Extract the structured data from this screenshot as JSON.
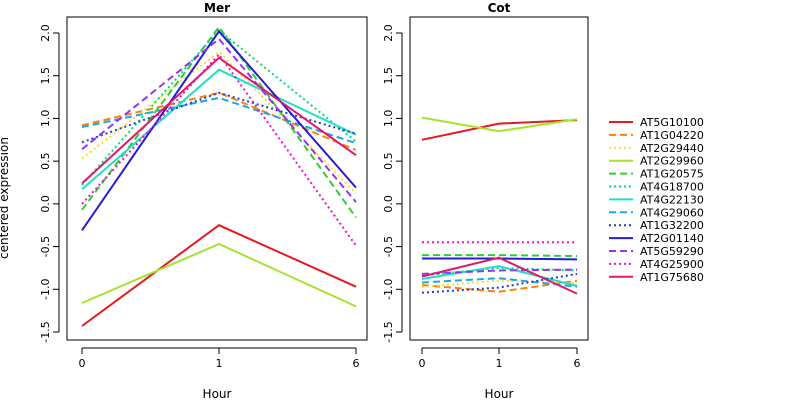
{
  "chart_data": [
    {
      "type": "line",
      "title": "Mer",
      "xlabel": "Hour",
      "ylabel": "centered expression",
      "x": [
        "0",
        "1",
        "6"
      ],
      "ylim": [
        -1.5,
        2.2
      ],
      "yticks": [
        "-1.5",
        "-1.0",
        "-0.5",
        "0.0",
        "0.5",
        "1.0",
        "1.5",
        "2.0"
      ],
      "series": [
        {
          "name": "AT5G10100",
          "values": [
            -1.43,
            -0.25,
            -0.97
          ]
        },
        {
          "name": "AT1G04220",
          "values": [
            0.92,
            1.3,
            0.63
          ]
        },
        {
          "name": "AT2G29440",
          "values": [
            0.53,
            1.78,
            0.12
          ]
        },
        {
          "name": "AT2G29960",
          "values": [
            -1.16,
            -0.47,
            -1.2
          ]
        },
        {
          "name": "AT1G20575",
          "values": [
            -0.07,
            2.07,
            -0.16
          ]
        },
        {
          "name": "AT4G18700",
          "values": [
            0.22,
            2.03,
            0.73
          ]
        },
        {
          "name": "AT4G22130",
          "values": [
            0.17,
            1.57,
            0.81
          ]
        },
        {
          "name": "AT4G29060",
          "values": [
            0.9,
            1.24,
            0.71
          ]
        },
        {
          "name": "AT1G32200",
          "values": [
            0.72,
            1.3,
            0.82
          ]
        },
        {
          "name": "AT2G01140",
          "values": [
            -0.31,
            2.02,
            0.19
          ]
        },
        {
          "name": "AT5G59290",
          "values": [
            0.64,
            1.93,
            0.02
          ]
        },
        {
          "name": "AT4G25900",
          "values": [
            0.0,
            1.75,
            -0.49
          ]
        },
        {
          "name": "AT1G75680",
          "values": [
            0.24,
            1.71,
            0.57
          ]
        }
      ]
    },
    {
      "type": "line",
      "title": "Cot",
      "xlabel": "Hour",
      "ylabel": "",
      "x": [
        "0",
        "1",
        "6"
      ],
      "ylim": [
        -1.5,
        2.2
      ],
      "yticks": [
        "-1.5",
        "-1.0",
        "-0.5",
        "0.0",
        "0.5",
        "1.0",
        "1.5",
        "2.0"
      ],
      "series": [
        {
          "name": "AT5G10100",
          "values": [
            0.75,
            0.94,
            0.98
          ]
        },
        {
          "name": "AT1G04220",
          "values": [
            -0.95,
            -1.03,
            -0.9
          ]
        },
        {
          "name": "AT2G29440",
          "values": [
            -0.97,
            -0.9,
            -0.93
          ]
        },
        {
          "name": "AT2G29960",
          "values": [
            1.01,
            0.85,
            0.99
          ]
        },
        {
          "name": "AT1G20575",
          "values": [
            -0.6,
            -0.6,
            -0.61
          ]
        },
        {
          "name": "AT4G18700",
          "values": [
            -0.84,
            -0.75,
            -0.78
          ]
        },
        {
          "name": "AT4G22130",
          "values": [
            -0.88,
            -0.73,
            -0.96
          ]
        },
        {
          "name": "AT4G29060",
          "values": [
            -0.92,
            -0.87,
            -0.97
          ]
        },
        {
          "name": "AT1G32200",
          "values": [
            -1.04,
            -0.98,
            -0.82
          ]
        },
        {
          "name": "AT2G01140",
          "values": [
            -0.64,
            -0.64,
            -0.65
          ]
        },
        {
          "name": "AT5G59290",
          "values": [
            -0.82,
            -0.78,
            -0.77
          ]
        },
        {
          "name": "AT4G25900",
          "values": [
            -0.45,
            -0.45,
            -0.45
          ]
        },
        {
          "name": "AT1G75680",
          "values": [
            -0.85,
            -0.63,
            -1.05
          ]
        }
      ]
    }
  ],
  "legend": {
    "position": "right",
    "items": [
      {
        "name": "AT5G10100",
        "color": "#E41A1C",
        "dash": "solid"
      },
      {
        "name": "AT1G04220",
        "color": "#FF7F00",
        "dash": "dashed"
      },
      {
        "name": "AT2G29440",
        "color": "#FFD92F",
        "dash": "dotted"
      },
      {
        "name": "AT2G29960",
        "color": "#A6E22E",
        "dash": "solid"
      },
      {
        "name": "AT1G20575",
        "color": "#33CC33",
        "dash": "dashed"
      },
      {
        "name": "AT4G18700",
        "color": "#00DD77",
        "dash": "dotted"
      },
      {
        "name": "AT4G22130",
        "color": "#1EE0C6",
        "dash": "solid"
      },
      {
        "name": "AT4G29060",
        "color": "#1AA7E8",
        "dash": "dashed"
      },
      {
        "name": "AT1G32200",
        "color": "#1F3FDD",
        "dash": "dotted"
      },
      {
        "name": "AT2G01140",
        "color": "#2A1BD0",
        "dash": "solid"
      },
      {
        "name": "AT5G59290",
        "color": "#9933EE",
        "dash": "dashed"
      },
      {
        "name": "AT4G25900",
        "color": "#EE11CC",
        "dash": "dotted"
      },
      {
        "name": "AT1G75680",
        "color": "#E0186E",
        "dash": "solid"
      }
    ]
  }
}
